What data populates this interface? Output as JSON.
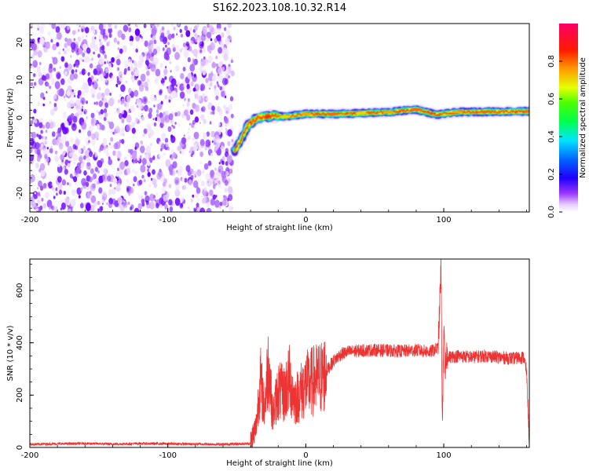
{
  "title": "S162.2023.108.10.32.R14",
  "colors": {
    "line": "#ee3333",
    "frame": "#000000"
  },
  "colorbar": {
    "label": "Normalized spectral amplitude",
    "ticks": [
      "0.0",
      "0.2",
      "0.4",
      "0.6",
      "0.8"
    ],
    "tick_values": [
      0.0,
      0.2,
      0.4,
      0.6,
      0.8
    ],
    "range": [
      0,
      1
    ],
    "colormap": "gist_rainbow_r with transparent low end"
  },
  "chart_data": [
    {
      "type": "heatmap",
      "xlabel": "Height of straight line (km)",
      "ylabel": "Frequency (Hz)",
      "xlim": [
        -200,
        162
      ],
      "ylim": [
        -25,
        25
      ],
      "x_ticks": [
        -200,
        -100,
        0,
        100
      ],
      "x_tick_labels": [
        "-200",
        "-100",
        "0",
        "100"
      ],
      "y_ticks": [
        -20,
        -10,
        0,
        10,
        20
      ],
      "y_tick_labels": [
        "-20",
        "-10",
        "0",
        "10",
        "20"
      ],
      "noise_region_x": [
        -200,
        -53
      ],
      "ridge": [
        {
          "x": -52,
          "y": -9,
          "amp": 0.35
        },
        {
          "x": -47,
          "y": -6,
          "amp": 0.4
        },
        {
          "x": -42,
          "y": -2,
          "amp": 0.45
        },
        {
          "x": -35,
          "y": 0,
          "amp": 0.55
        },
        {
          "x": -25,
          "y": 0.5,
          "amp": 0.6
        },
        {
          "x": -15,
          "y": 0.3,
          "amp": 0.7
        },
        {
          "x": 0,
          "y": 1,
          "amp": 0.75
        },
        {
          "x": 20,
          "y": 1,
          "amp": 0.8
        },
        {
          "x": 40,
          "y": 1.2,
          "amp": 0.7
        },
        {
          "x": 60,
          "y": 1.5,
          "amp": 0.75
        },
        {
          "x": 80,
          "y": 2.2,
          "amp": 0.8
        },
        {
          "x": 95,
          "y": 0.8,
          "amp": 0.6
        },
        {
          "x": 110,
          "y": 1.5,
          "amp": 0.75
        },
        {
          "x": 130,
          "y": 1.6,
          "amp": 0.8
        },
        {
          "x": 162,
          "y": 1.7,
          "amp": 0.8
        }
      ]
    },
    {
      "type": "line",
      "xlabel": "Height of straight line (km)",
      "ylabel": "SNR (10 * v/v)",
      "xlim": [
        -200,
        162
      ],
      "ylim": [
        0,
        720
      ],
      "x_ticks": [
        -200,
        -100,
        0,
        100
      ],
      "x_tick_labels": [
        "-200",
        "-100",
        "0",
        "100"
      ],
      "y_ticks": [
        0,
        200,
        400,
        600
      ],
      "y_tick_labels": [
        "0",
        "200",
        "400",
        "600"
      ],
      "series": [
        {
          "x": [
            -200,
            -180,
            -160,
            -140,
            -120,
            -100,
            -80,
            -60,
            -40,
            -36,
            -33,
            -30,
            -27,
            -24,
            -20,
            -16,
            -12,
            -8,
            -4,
            0,
            4,
            8,
            12,
            16,
            20,
            25,
            30,
            40,
            50,
            60,
            70,
            80,
            90,
            96,
            98,
            99,
            100,
            101,
            102,
            104,
            110,
            120,
            130,
            140,
            150,
            158,
            160,
            162
          ],
          "y": [
            12,
            14,
            15,
            13,
            15,
            14,
            13,
            12,
            15,
            80,
            260,
            150,
            330,
            120,
            220,
            200,
            260,
            180,
            210,
            240,
            250,
            260,
            270,
            300,
            330,
            355,
            365,
            370,
            372,
            370,
            368,
            372,
            365,
            380,
            700,
            60,
            480,
            260,
            360,
            345,
            350,
            345,
            350,
            345,
            340,
            345,
            290,
            20
          ]
        }
      ]
    }
  ]
}
